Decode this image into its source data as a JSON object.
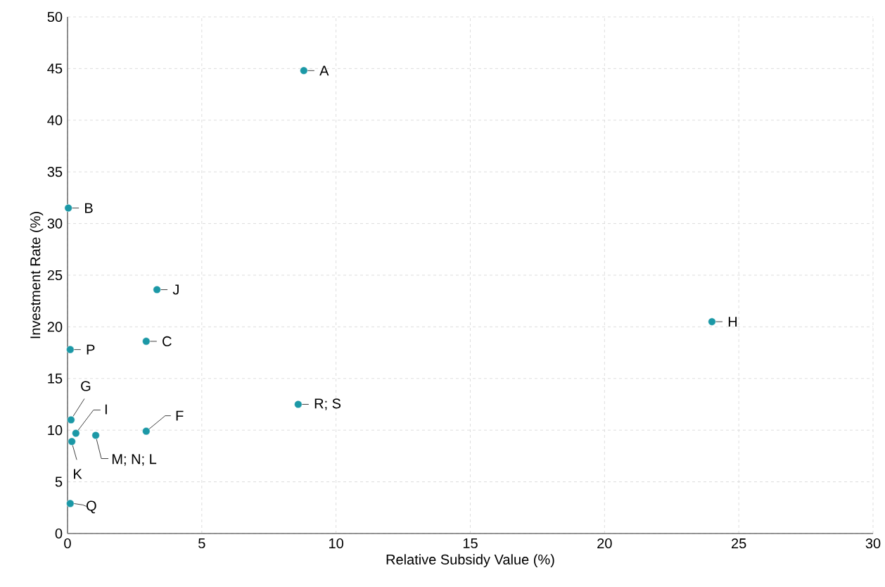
{
  "chart_data": {
    "type": "scatter",
    "xlabel": "Relative Subsidy Value (%)",
    "ylabel": "Investment Rate (%)",
    "x": [
      8.8,
      0.03,
      3.33,
      24.0,
      2.93,
      0.1,
      8.59,
      0.13,
      2.93,
      0.31,
      1.05,
      0.16,
      0.1
    ],
    "values": [
      44.8,
      31.5,
      23.6,
      20.5,
      18.6,
      17.8,
      12.5,
      11.0,
      9.9,
      9.7,
      9.5,
      8.9,
      2.9
    ],
    "color": "#1b98a6",
    "marker": "circle",
    "xlim": [
      0,
      30
    ],
    "ylim": [
      0,
      50
    ],
    "xticks": [
      0,
      5,
      10,
      15,
      20,
      25,
      30
    ],
    "yticks": [
      0,
      5,
      10,
      15,
      20,
      25,
      30,
      35,
      40,
      45,
      50
    ],
    "grid": true,
    "annotations": [
      {
        "text": "A",
        "x": 8.8,
        "y": 44.8
      },
      {
        "text": "B",
        "x": 0.03,
        "y": 31.5
      },
      {
        "text": "J",
        "x": 3.33,
        "y": 23.6
      },
      {
        "text": "H",
        "x": 24.0,
        "y": 20.5
      },
      {
        "text": "C",
        "x": 2.93,
        "y": 18.6
      },
      {
        "text": "P",
        "x": 0.1,
        "y": 17.8
      },
      {
        "text": "R; S",
        "x": 8.59,
        "y": 12.5
      },
      {
        "text": "G",
        "x": 0.13,
        "y": 11.0
      },
      {
        "text": "F",
        "x": 2.93,
        "y": 9.9
      },
      {
        "text": "I",
        "x": 0.31,
        "y": 9.7
      },
      {
        "text": "M; N; L",
        "x": 1.05,
        "y": 9.5
      },
      {
        "text": "K",
        "x": 0.16,
        "y": 8.9
      },
      {
        "text": "Q",
        "x": 0.1,
        "y": 2.9
      }
    ]
  }
}
